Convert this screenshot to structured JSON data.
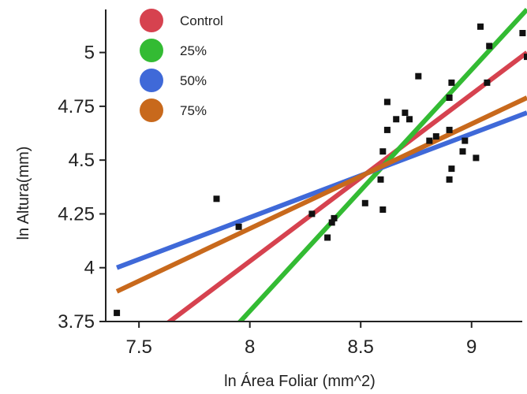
{
  "chart_data": {
    "type": "scatter",
    "xlabel": "ln Área Foliar (mm^2)",
    "ylabel": "ln Altura(mm)",
    "xlim": [
      7.35,
      9.25
    ],
    "ylim": [
      3.75,
      5.2
    ],
    "x_ticks": [
      7.5,
      8,
      8.5,
      9
    ],
    "x_tick_labels": [
      "7.5",
      "8",
      "8.5",
      "9"
    ],
    "y_ticks": [
      3.75,
      4,
      4.25,
      4.5,
      4.75,
      5
    ],
    "y_tick_labels": [
      "3.75",
      "4",
      "4.25",
      "4.5",
      "4.75",
      "5"
    ],
    "grid": false,
    "legend_position": "top-left",
    "points": [
      {
        "x": 7.4,
        "y": 3.79
      },
      {
        "x": 7.85,
        "y": 4.32
      },
      {
        "x": 7.95,
        "y": 4.19
      },
      {
        "x": 8.28,
        "y": 4.25
      },
      {
        "x": 8.35,
        "y": 4.14
      },
      {
        "x": 8.37,
        "y": 4.21
      },
      {
        "x": 8.38,
        "y": 4.23
      },
      {
        "x": 8.52,
        "y": 4.3
      },
      {
        "x": 8.59,
        "y": 4.41
      },
      {
        "x": 8.6,
        "y": 4.27
      },
      {
        "x": 8.6,
        "y": 4.54
      },
      {
        "x": 8.62,
        "y": 4.64
      },
      {
        "x": 8.62,
        "y": 4.77
      },
      {
        "x": 8.66,
        "y": 4.69
      },
      {
        "x": 8.7,
        "y": 4.72
      },
      {
        "x": 8.72,
        "y": 4.69
      },
      {
        "x": 8.76,
        "y": 4.89
      },
      {
        "x": 8.81,
        "y": 4.59
      },
      {
        "x": 8.84,
        "y": 4.61
      },
      {
        "x": 8.9,
        "y": 4.64
      },
      {
        "x": 8.9,
        "y": 4.79
      },
      {
        "x": 8.9,
        "y": 4.41
      },
      {
        "x": 8.91,
        "y": 4.46
      },
      {
        "x": 8.91,
        "y": 4.86
      },
      {
        "x": 8.96,
        "y": 4.54
      },
      {
        "x": 8.97,
        "y": 4.59
      },
      {
        "x": 9.02,
        "y": 4.51
      },
      {
        "x": 9.04,
        "y": 5.12
      },
      {
        "x": 9.07,
        "y": 4.86
      },
      {
        "x": 9.08,
        "y": 5.03
      },
      {
        "x": 9.23,
        "y": 5.09
      },
      {
        "x": 9.25,
        "y": 4.98
      }
    ],
    "series": [
      {
        "name": "Control",
        "color": "#d6424f",
        "x": [
          7.6,
          9.25
        ],
        "y": [
          3.72,
          5.0
        ]
      },
      {
        "name": "25%",
        "color": "#33bb33",
        "x": [
          7.93,
          9.25
        ],
        "y": [
          3.72,
          5.2
        ]
      },
      {
        "name": "50%",
        "color": "#3f69d8",
        "x": [
          7.4,
          9.25
        ],
        "y": [
          4.0,
          4.72
        ]
      },
      {
        "name": "75%",
        "color": "#c8691c",
        "x": [
          7.4,
          9.25
        ],
        "y": [
          3.89,
          4.79
        ]
      }
    ]
  }
}
